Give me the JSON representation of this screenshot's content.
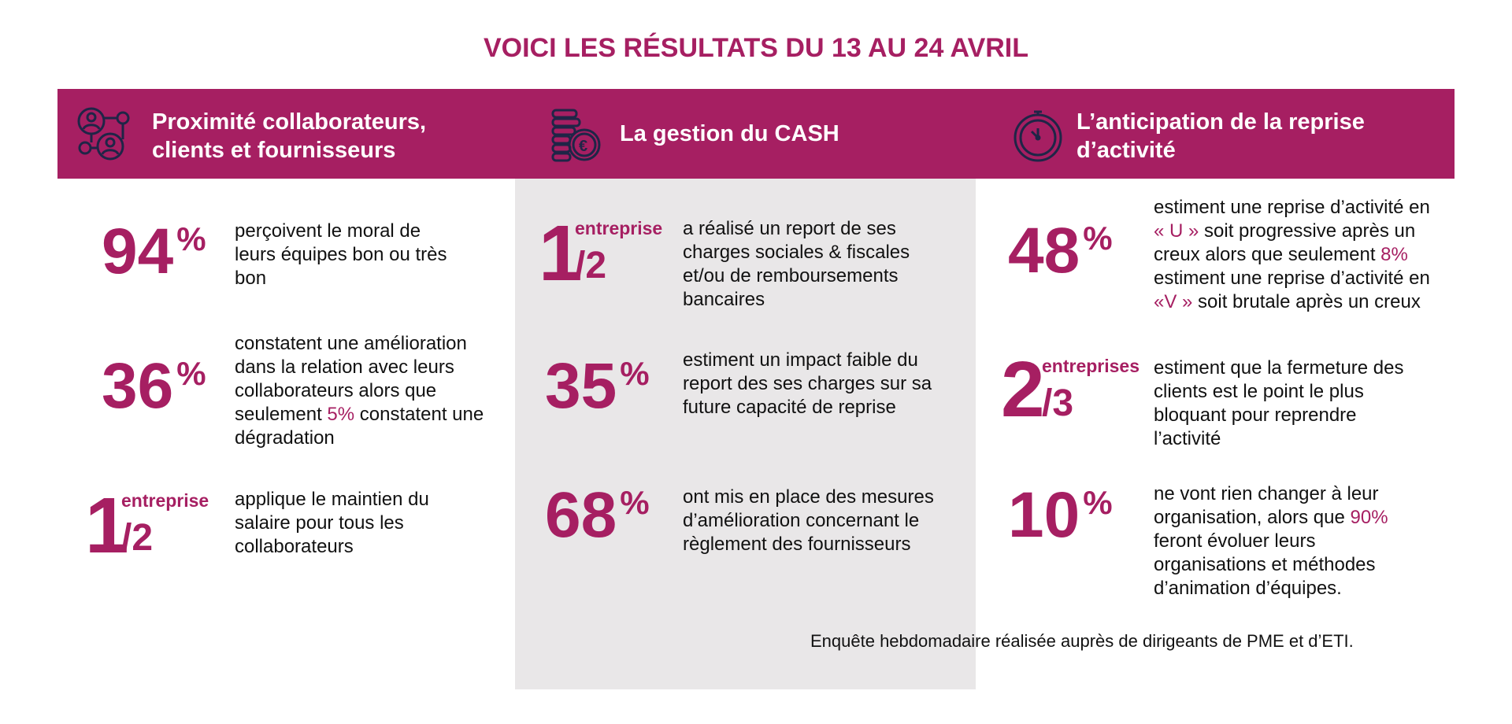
{
  "title": "VOICI LES RÉSULTATS DU 13 AU 24 AVRIL",
  "colors": {
    "accent": "#a61f62",
    "icon": "#1f2547",
    "column_bg": "#e9e7e8"
  },
  "columns": [
    {
      "icon": "network-people-icon",
      "heading_l1": "Proximité collaborateurs,",
      "heading_l2": "clients et fournisseurs",
      "items": [
        {
          "value": "94",
          "unit": "%",
          "text": "perçoivent le moral de leurs équipes bon ou très bon"
        },
        {
          "value": "36",
          "unit": "%",
          "text_a": "constatent une amélioration dans la relation avec leurs collaborateurs alors que seulement ",
          "hl": "5%",
          "text_b": " constatent une dégradation"
        },
        {
          "numerator": "1",
          "label": "entreprise",
          "denominator": "/2",
          "text": "applique le maintien du salaire pour tous les collaborateurs"
        }
      ]
    },
    {
      "icon": "coins-euro-icon",
      "heading_l1": "La gestion du CASH",
      "items": [
        {
          "numerator": "1",
          "label": "entreprise",
          "denominator": "/2",
          "text": "a réalisé un report de ses charges sociales & fiscales et/ou de remboursements bancaires"
        },
        {
          "value": "35",
          "unit": "%",
          "text": "estiment un impact faible du report des ses charges sur sa future capacité de reprise"
        },
        {
          "value": "68",
          "unit": "%",
          "text": "ont mis en place des mesures d’amélioration concernant le règlement des fournisseurs"
        }
      ]
    },
    {
      "icon": "stopwatch-icon",
      "heading_l1": "L’anticipation de la reprise",
      "heading_l2": "d’activité",
      "items": [
        {
          "value": "48",
          "unit": "%",
          "t1": "estiment une reprise d’activité en ",
          "h1": "« U »",
          "t2": " soit progressive après un creux alors que seulement ",
          "h2": "8%",
          "t3": " estiment une reprise d’activité en ",
          "h3": "«V »",
          "t4": " soit brutale après un creux"
        },
        {
          "numerator": "2",
          "label": "entreprises",
          "denominator": "/3",
          "text": "estiment que la fermeture des clients est le point le plus bloquant pour reprendre l’activité"
        },
        {
          "value": "10",
          "unit": "%",
          "text_a": "ne vont rien changer à leur organisation, alors que ",
          "hl": "90%",
          "text_b": " feront évoluer leurs organisations et méthodes d’animation d’équipes."
        }
      ]
    }
  ],
  "footnote": "Enquête hebdomadaire réalisée auprès de dirigeants de PME et d’ETI."
}
